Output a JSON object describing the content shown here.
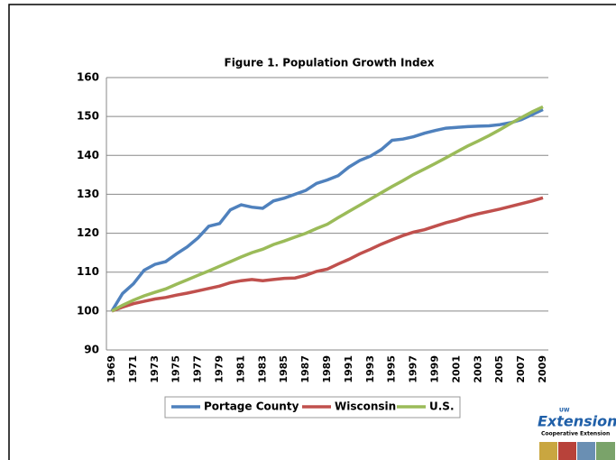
{
  "chart_data": {
    "type": "line",
    "title": "Figure 1. Population  Growth Index",
    "categories": [
      "1969",
      null,
      "1971",
      null,
      "1973",
      null,
      "1975",
      null,
      "1977",
      null,
      "1979",
      null,
      "1981",
      null,
      "1983",
      null,
      "1985",
      null,
      "1987",
      null,
      "1989",
      null,
      "1991",
      null,
      "1993",
      null,
      "1995",
      null,
      "1997",
      null,
      "1999",
      null,
      "2001",
      null,
      "2003",
      null,
      "2005",
      null,
      "2007",
      null,
      "2009"
    ],
    "series": [
      {
        "name": "Portage County",
        "color": "#4f81bd",
        "values": [
          100,
          104.5,
          107,
          110.5,
          112,
          112.7,
          114.7,
          116.5,
          118.8,
          121.8,
          122.5,
          126,
          127.3,
          126.7,
          126.4,
          128.3,
          129,
          130,
          131,
          132.8,
          133.7,
          134.8,
          137,
          138.7,
          139.8,
          141.5,
          143.9,
          144.2,
          144.8,
          145.7,
          146.4,
          147,
          147.2,
          147.4,
          147.5,
          147.6,
          147.9,
          148.4,
          149.2,
          150.5,
          151.8
        ]
      },
      {
        "name": "Wisconsin",
        "color": "#c0504d",
        "values": [
          100,
          101,
          101.9,
          102.5,
          103.1,
          103.5,
          104.1,
          104.6,
          105.2,
          105.8,
          106.4,
          107.3,
          107.8,
          108.1,
          107.8,
          108.1,
          108.4,
          108.5,
          109.2,
          110.2,
          110.8,
          112.1,
          113.3,
          114.7,
          115.9,
          117.2,
          118.3,
          119.4,
          120.3,
          120.9,
          121.8,
          122.7,
          123.4,
          124.3,
          125,
          125.6,
          126.2,
          126.9,
          127.6,
          128.3,
          129.1
        ]
      },
      {
        "name": "U.S.",
        "color": "#9bbb59",
        "values": [
          100,
          101.5,
          102.8,
          103.9,
          104.8,
          105.7,
          106.9,
          108,
          109.2,
          110.3,
          111.5,
          112.7,
          113.9,
          115,
          115.9,
          117.1,
          118,
          119,
          120,
          121.2,
          122.3,
          124,
          125.6,
          127.2,
          128.8,
          130.4,
          132,
          133.5,
          135.1,
          136.5,
          137.9,
          139.4,
          140.9,
          142.4,
          143.7,
          145.1,
          146.6,
          148.2,
          149.7,
          151.2,
          152.5
        ]
      }
    ],
    "ylim": [
      90,
      160
    ],
    "yticks": [
      90,
      100,
      110,
      120,
      130,
      140,
      150,
      160
    ],
    "grid": true,
    "legend": "bottom"
  },
  "logo": {
    "top": "UW",
    "name": "Extension",
    "subtitle": "Cooperative Extension"
  }
}
